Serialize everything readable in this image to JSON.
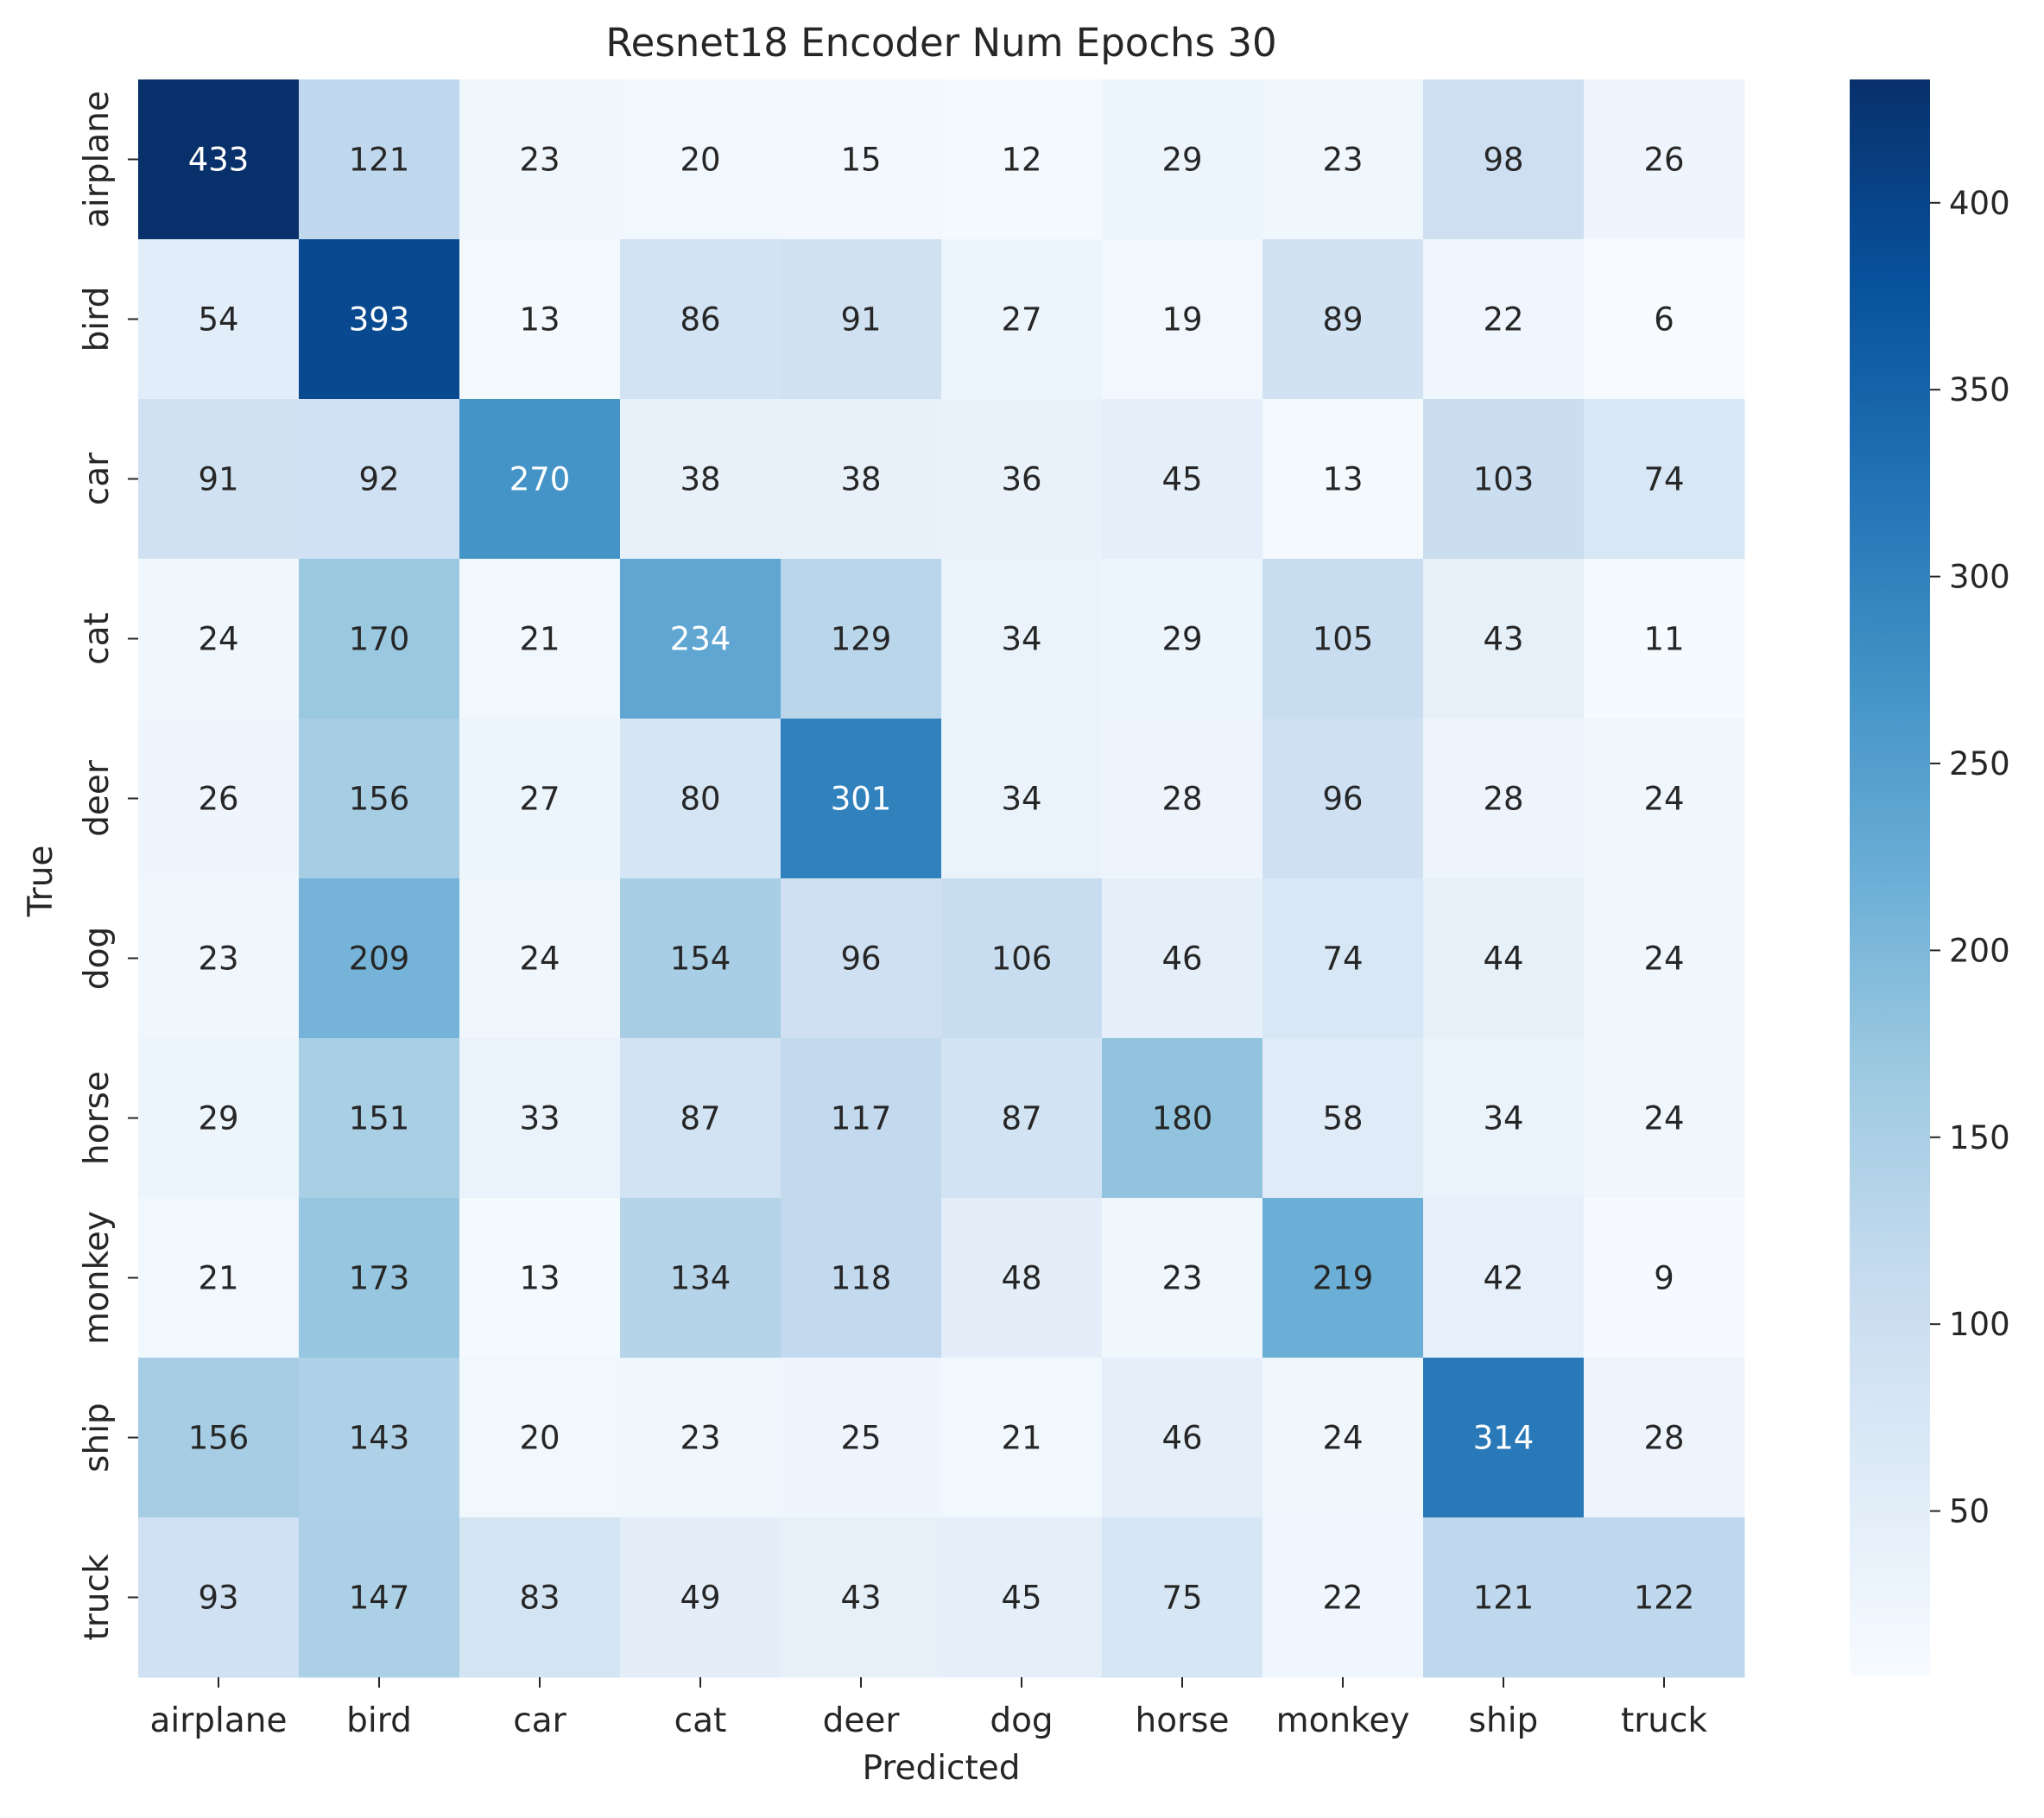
{
  "chart_data": {
    "type": "heatmap",
    "title": "Resnet18 Encoder Num Epochs 30",
    "xlabel": "Predicted",
    "ylabel": "True",
    "x_categories": [
      "airplane",
      "bird",
      "car",
      "cat",
      "deer",
      "dog",
      "horse",
      "monkey",
      "ship",
      "truck"
    ],
    "y_categories": [
      "airplane",
      "bird",
      "car",
      "cat",
      "deer",
      "dog",
      "horse",
      "monkey",
      "ship",
      "truck"
    ],
    "values": [
      [
        433,
        121,
        23,
        20,
        15,
        12,
        29,
        23,
        98,
        26
      ],
      [
        54,
        393,
        13,
        86,
        91,
        27,
        19,
        89,
        22,
        6
      ],
      [
        91,
        92,
        270,
        38,
        38,
        36,
        45,
        13,
        103,
        74
      ],
      [
        24,
        170,
        21,
        234,
        129,
        34,
        29,
        105,
        43,
        11
      ],
      [
        26,
        156,
        27,
        80,
        301,
        34,
        28,
        96,
        28,
        24
      ],
      [
        23,
        209,
        24,
        154,
        96,
        106,
        46,
        74,
        44,
        24
      ],
      [
        29,
        151,
        33,
        87,
        117,
        87,
        180,
        58,
        34,
        24
      ],
      [
        21,
        173,
        13,
        134,
        118,
        48,
        23,
        219,
        42,
        9
      ],
      [
        156,
        143,
        20,
        23,
        25,
        21,
        46,
        24,
        314,
        28
      ],
      [
        93,
        147,
        83,
        49,
        43,
        45,
        75,
        22,
        121,
        122
      ]
    ],
    "colormap": "Blues",
    "value_range": [
      6,
      433
    ],
    "colorbar_ticks": [
      50,
      100,
      150,
      200,
      250,
      300,
      350,
      400
    ],
    "grid": false,
    "legend": "colorbar-right"
  }
}
